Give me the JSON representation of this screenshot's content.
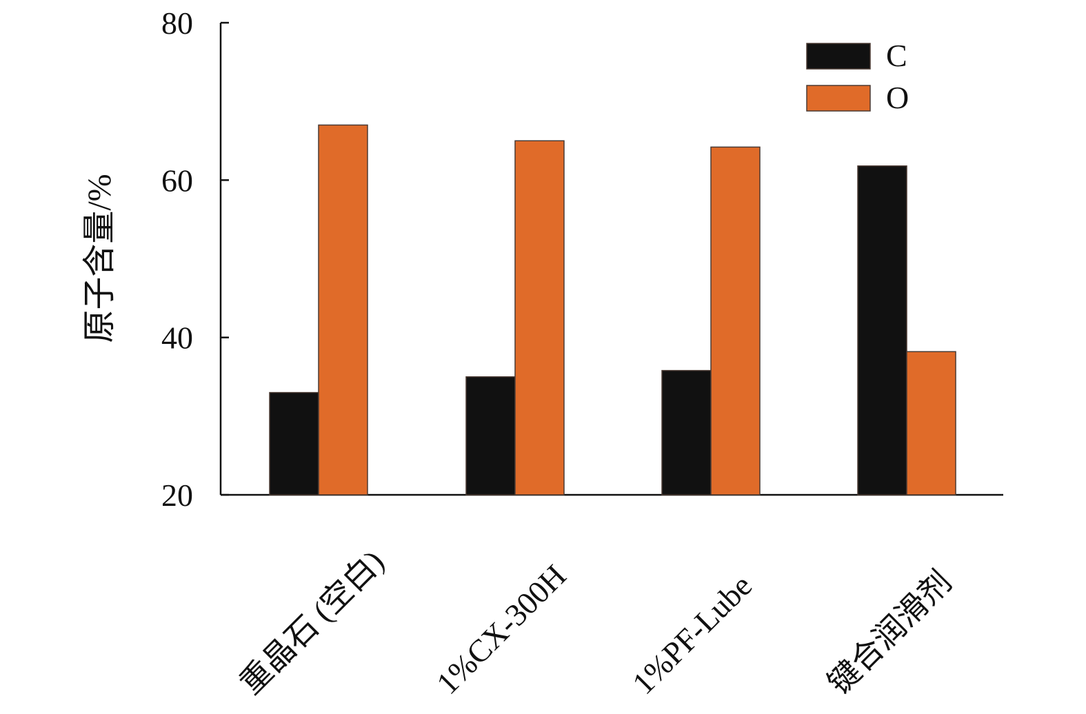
{
  "chart_data": {
    "type": "bar",
    "categories": [
      "重晶石 (空白)",
      "1%CX-300H",
      "1%PF-Lube",
      "键合润滑剂"
    ],
    "series": [
      {
        "name": "C",
        "values": [
          33.0,
          35.0,
          35.8,
          61.8
        ],
        "color": "#111111"
      },
      {
        "name": "O",
        "values": [
          67.0,
          65.0,
          64.2,
          38.2
        ],
        "color": "#E06B29"
      }
    ],
    "title": "",
    "xlabel": "",
    "ylabel": "原子含量/%",
    "ylim": [
      20,
      80
    ],
    "yticks": [
      20,
      40,
      60,
      80
    ],
    "grid": false,
    "legend_position": "top-right"
  }
}
